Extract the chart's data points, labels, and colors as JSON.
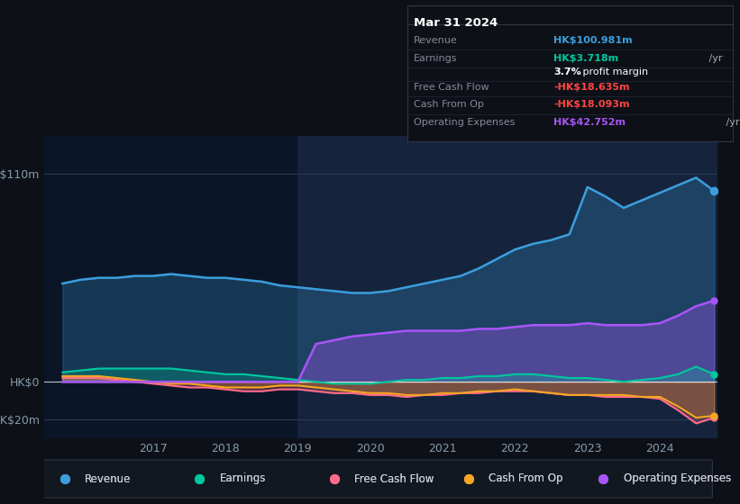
{
  "background_color": "#0d1117",
  "chart_bg_color": "#0d1520",
  "plot_area_bg": "#0a1628",
  "title": "Mar 31 2024",
  "y_labels": [
    "HK$110m",
    "HK$0",
    "-HK$20m"
  ],
  "y_values": [
    110,
    0,
    -20
  ],
  "x_labels": [
    "2017",
    "2018",
    "2019",
    "2020",
    "2021",
    "2022",
    "2023",
    "2024"
  ],
  "ylim": [
    -30,
    130
  ],
  "xlim": [
    2015.5,
    2024.8
  ],
  "info_box": {
    "title": "Mar 31 2024",
    "rows": [
      {
        "label": "Revenue",
        "value": "HK$100.981m /yr",
        "value_color": "#3b9edd"
      },
      {
        "label": "Earnings",
        "value": "HK$3.718m /yr",
        "value_color": "#00c8a0"
      },
      {
        "label": "",
        "value": "3.7% profit margin",
        "value_color": "#ffffff"
      },
      {
        "label": "Free Cash Flow",
        "value": "-HK$18.635m /yr",
        "value_color": "#ff4444"
      },
      {
        "label": "Cash From Op",
        "value": "-HK$18.093m /yr",
        "value_color": "#ff4444"
      },
      {
        "label": "Operating Expenses",
        "value": "HK$42.752m /yr",
        "value_color": "#a855f7"
      }
    ]
  },
  "legend": [
    {
      "label": "Revenue",
      "color": "#3b9edd",
      "marker": "o"
    },
    {
      "label": "Earnings",
      "color": "#00c8a0",
      "marker": "o"
    },
    {
      "label": "Free Cash Flow",
      "color": "#ff6b8a",
      "marker": "o"
    },
    {
      "label": "Cash From Op",
      "color": "#f5a623",
      "marker": "o"
    },
    {
      "label": "Operating Expenses",
      "color": "#a855f7",
      "marker": "o"
    }
  ],
  "series": {
    "x": [
      2015.75,
      2016.0,
      2016.25,
      2016.5,
      2016.75,
      2017.0,
      2017.25,
      2017.5,
      2017.75,
      2018.0,
      2018.25,
      2018.5,
      2018.75,
      2019.0,
      2019.25,
      2019.5,
      2019.75,
      2020.0,
      2020.25,
      2020.5,
      2020.75,
      2021.0,
      2021.25,
      2021.5,
      2021.75,
      2022.0,
      2022.25,
      2022.5,
      2022.75,
      2023.0,
      2023.25,
      2023.5,
      2023.75,
      2024.0,
      2024.25,
      2024.5,
      2024.75
    ],
    "revenue": [
      52,
      54,
      55,
      55,
      56,
      56,
      57,
      56,
      55,
      55,
      54,
      53,
      51,
      50,
      49,
      48,
      47,
      47,
      48,
      50,
      52,
      54,
      56,
      60,
      65,
      70,
      73,
      75,
      78,
      103,
      98,
      92,
      96,
      100,
      104,
      108,
      101
    ],
    "earnings": [
      5,
      6,
      7,
      7,
      7,
      7,
      7,
      6,
      5,
      4,
      4,
      3,
      2,
      1,
      0,
      -1,
      -1,
      -1,
      0,
      1,
      1,
      2,
      2,
      3,
      3,
      4,
      4,
      3,
      2,
      2,
      1,
      0,
      1,
      2,
      4,
      8,
      4
    ],
    "free_cash_flow": [
      2,
      2,
      2,
      1,
      0,
      -1,
      -2,
      -3,
      -3,
      -4,
      -5,
      -5,
      -4,
      -4,
      -5,
      -6,
      -6,
      -7,
      -7,
      -8,
      -7,
      -7,
      -6,
      -6,
      -5,
      -5,
      -5,
      -6,
      -7,
      -7,
      -8,
      -8,
      -8,
      -9,
      -15,
      -22,
      -19
    ],
    "cash_from_op": [
      3,
      3,
      3,
      2,
      1,
      0,
      -1,
      -1,
      -2,
      -3,
      -3,
      -3,
      -2,
      -2,
      -3,
      -4,
      -5,
      -6,
      -6,
      -7,
      -7,
      -6,
      -6,
      -5,
      -5,
      -4,
      -5,
      -6,
      -7,
      -7,
      -7,
      -7,
      -8,
      -8,
      -13,
      -19,
      -18
    ],
    "operating_expenses": [
      0,
      0,
      0,
      0,
      0,
      0,
      0,
      0,
      0,
      0,
      0,
      0,
      0,
      0,
      20,
      22,
      24,
      25,
      26,
      27,
      27,
      27,
      27,
      28,
      28,
      29,
      30,
      30,
      30,
      31,
      30,
      30,
      30,
      31,
      35,
      40,
      43
    ]
  },
  "highlight_x_start": 2019.0,
  "highlight_x_end": 2024.8
}
